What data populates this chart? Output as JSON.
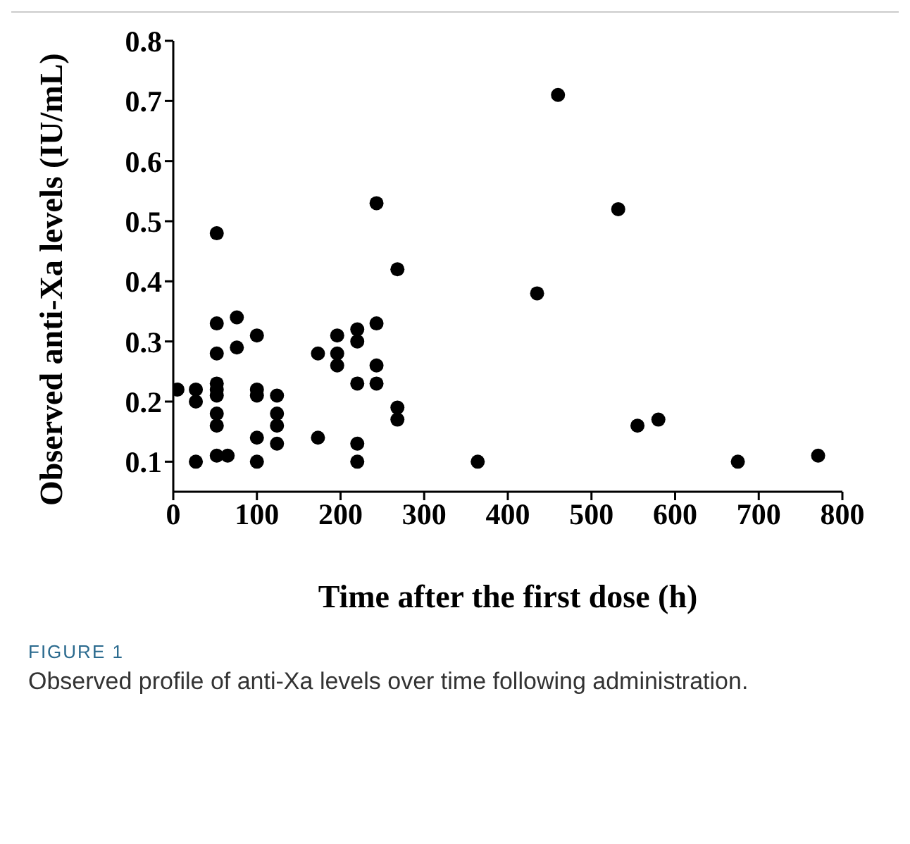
{
  "chart_data": {
    "type": "scatter",
    "xlabel": "Time after the first dose (h)",
    "ylabel": "Observed anti-Xa levels (IU/mL)",
    "x": [
      5,
      27,
      27,
      27,
      52,
      52,
      52,
      52,
      52,
      52,
      52,
      52,
      52,
      65,
      76,
      76,
      100,
      100,
      100,
      100,
      100,
      124,
      124,
      124,
      124,
      173,
      173,
      196,
      196,
      196,
      220,
      220,
      220,
      220,
      220,
      243,
      243,
      243,
      243,
      268,
      268,
      268,
      364,
      435,
      460,
      532,
      555,
      580,
      675,
      771
    ],
    "series": [
      {
        "color": "#000000",
        "values": [
          0.22,
          0.22,
          0.2,
          0.1,
          0.48,
          0.33,
          0.28,
          0.23,
          0.22,
          0.21,
          0.18,
          0.16,
          0.11,
          0.11,
          0.34,
          0.29,
          0.31,
          0.22,
          0.21,
          0.14,
          0.1,
          0.21,
          0.18,
          0.16,
          0.13,
          0.28,
          0.14,
          0.31,
          0.28,
          0.26,
          0.32,
          0.3,
          0.23,
          0.13,
          0.1,
          0.53,
          0.33,
          0.26,
          0.23,
          0.42,
          0.19,
          0.17,
          0.1,
          0.38,
          0.71,
          0.52,
          0.16,
          0.17,
          0.1,
          0.11
        ]
      }
    ],
    "xlim": [
      0,
      800
    ],
    "xticks": [
      0,
      100,
      200,
      300,
      400,
      500,
      600,
      700,
      800
    ],
    "ylim": [
      0.05,
      0.8
    ],
    "yticks": [
      0.1,
      0.2,
      0.3,
      0.4,
      0.5,
      0.6,
      0.7,
      0.8
    ],
    "marker": "circle",
    "grid": false,
    "legend": false,
    "annotations": [
      "FIGURE 1",
      "Observed profile of anti-Xa levels over time following administration."
    ]
  }
}
